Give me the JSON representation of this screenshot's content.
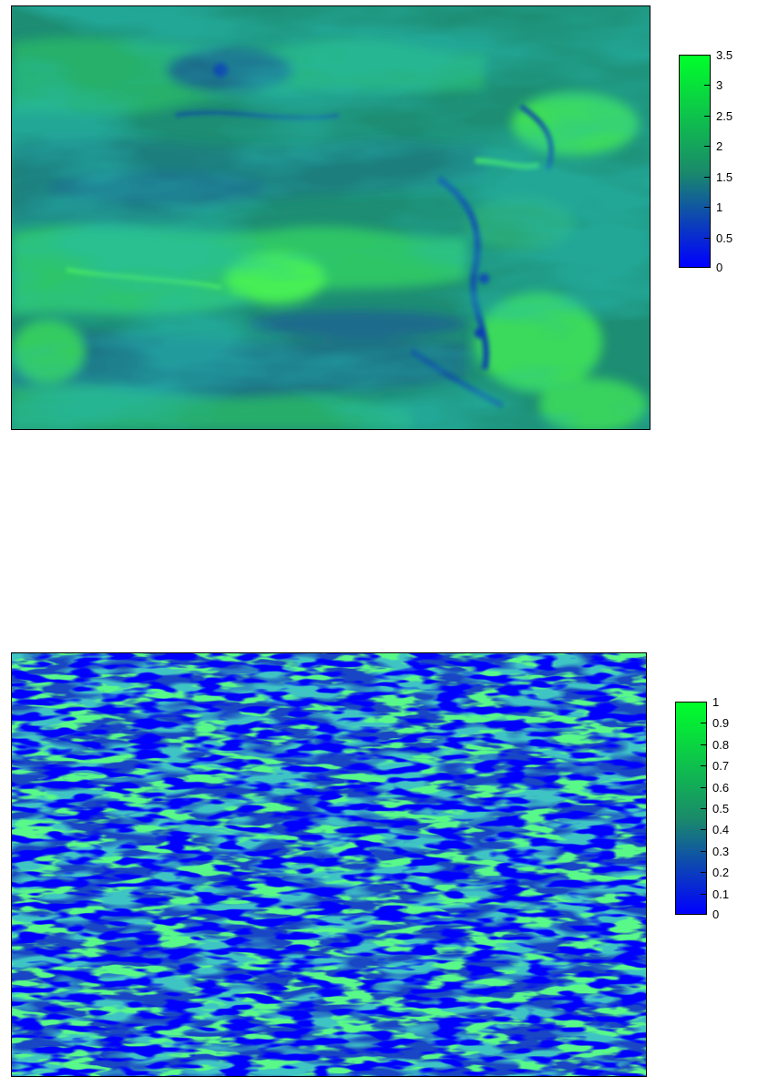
{
  "colors": {
    "low": "#0000ff",
    "mid": "#1a8a6a",
    "high": "#00ff2a"
  },
  "chart_data": [
    {
      "type": "heatmap",
      "title": "",
      "xlabel": "",
      "ylabel": "",
      "colorbar": {
        "min": 0,
        "max": 3.5,
        "ticks": [
          0,
          0.5,
          1,
          1.5,
          2,
          2.5,
          3,
          3.5
        ],
        "tick_labels": [
          "0",
          "0.5",
          "1",
          "1.5",
          "2",
          "2.5",
          "3",
          "3.5"
        ]
      },
      "field": "smooth swirling eddies; values mostly 0.8–2.2, high green streaks, a bright patch near center-left, dark blue fine filaments on right side"
    },
    {
      "type": "heatmap",
      "title": "",
      "xlabel": "",
      "ylabel": "",
      "colorbar": {
        "min": 0,
        "max": 1,
        "ticks": [
          0,
          0.1,
          0.2,
          0.3,
          0.4,
          0.5,
          0.6,
          0.7,
          0.8,
          0.9,
          1
        ],
        "tick_labels": [
          "0",
          "0.1",
          "0.2",
          "0.3",
          "0.4",
          "0.5",
          "0.6",
          "0.7",
          "0.8",
          "0.9",
          "1"
        ]
      },
      "field": "noisy horizontally-streaked texture; mostly blue (0–0.3) with scattered green speckles (0.5–1)"
    }
  ]
}
